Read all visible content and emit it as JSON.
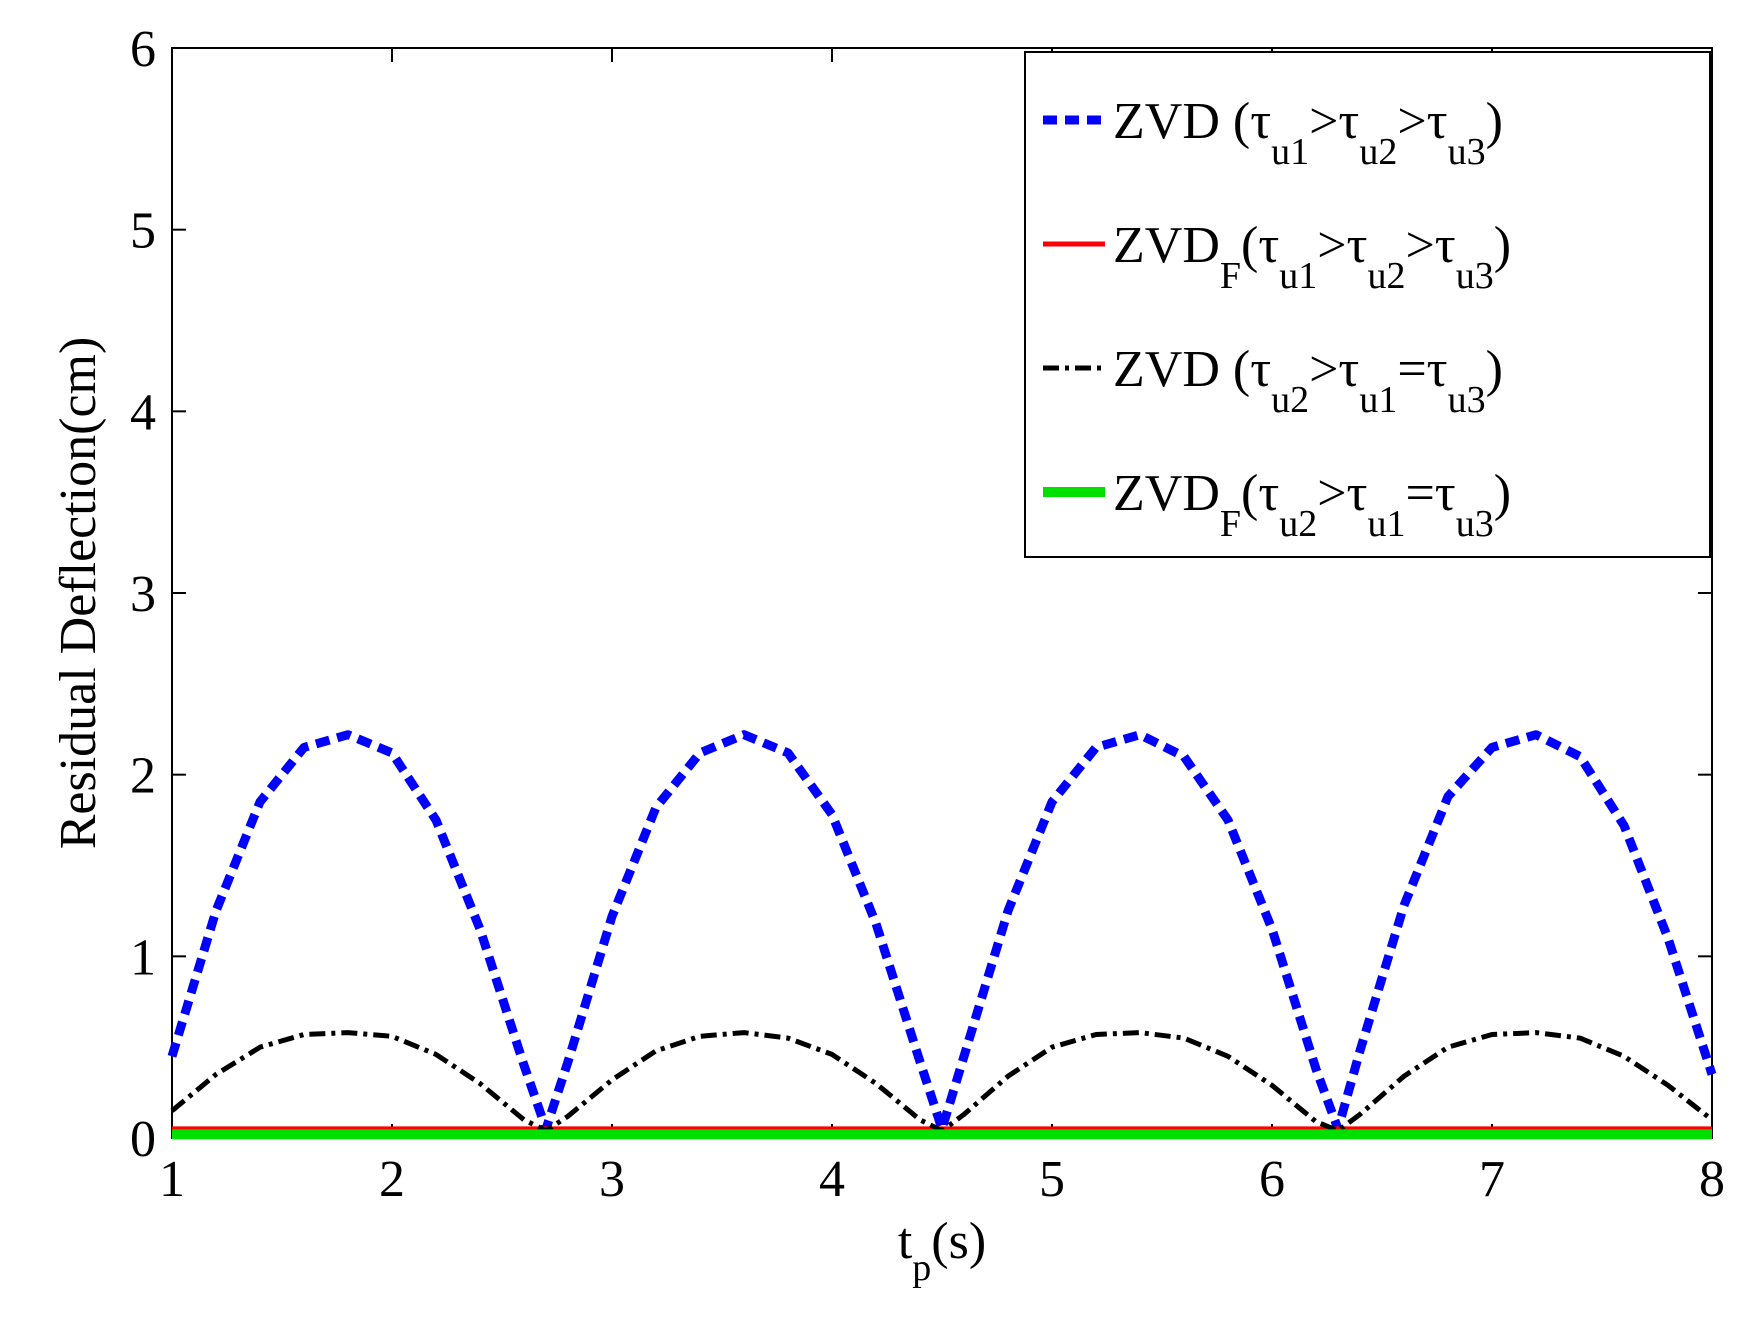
{
  "chart_data": {
    "type": "line",
    "title": "",
    "xlabel": {
      "main": "t",
      "sub": "p",
      "rest": "(s)"
    },
    "ylabel": "Residual Deflection(cm)",
    "xlim": [
      1,
      8
    ],
    "ylim": [
      0,
      6
    ],
    "xticks": [
      1,
      2,
      3,
      4,
      5,
      6,
      7,
      8
    ],
    "yticks": [
      0,
      1,
      2,
      3,
      4,
      5,
      6
    ],
    "grid": false,
    "legend_position": "top-right",
    "series": [
      {
        "color": "#0000ff",
        "style": "dashed",
        "legend": {
          "base": "ZVD",
          "baseSub": "",
          "a": "u1",
          "op1": ">",
          "b": "u2",
          "op2": ">",
          "c": "u3"
        },
        "x": [
          1.0,
          1.2,
          1.4,
          1.6,
          1.8,
          2.0,
          2.2,
          2.4,
          2.6,
          2.7,
          2.8,
          3.0,
          3.2,
          3.4,
          3.6,
          3.8,
          4.0,
          4.2,
          4.4,
          4.5,
          4.6,
          4.8,
          5.0,
          5.2,
          5.4,
          5.6,
          5.8,
          6.0,
          6.2,
          6.3,
          6.4,
          6.6,
          6.8,
          7.0,
          7.2,
          7.4,
          7.6,
          7.8,
          8.0
        ],
        "y": [
          0.45,
          1.25,
          1.85,
          2.15,
          2.22,
          2.12,
          1.75,
          1.15,
          0.4,
          0.05,
          0.42,
          1.22,
          1.82,
          2.12,
          2.22,
          2.12,
          1.78,
          1.18,
          0.42,
          0.05,
          0.45,
          1.25,
          1.85,
          2.15,
          2.22,
          2.1,
          1.75,
          1.15,
          0.38,
          0.05,
          0.48,
          1.28,
          1.88,
          2.15,
          2.22,
          2.1,
          1.72,
          1.1,
          0.35
        ]
      },
      {
        "color": "#ff0000",
        "style": "solid",
        "legend": {
          "base": "ZVD",
          "baseSub": "F",
          "a": "u1",
          "op1": ">",
          "b": "u2",
          "op2": ">",
          "c": "u3"
        },
        "x": [
          1,
          2,
          3,
          4,
          5,
          6,
          7,
          8
        ],
        "y": [
          0.05,
          0.05,
          0.05,
          0.05,
          0.05,
          0.05,
          0.05,
          0.05
        ]
      },
      {
        "color": "#000000",
        "style": "dashdot",
        "legend": {
          "base": "ZVD",
          "baseSub": "",
          "a": "u2",
          "op1": ">",
          "b": "u1",
          "op2": "=",
          "c": "u3"
        },
        "x": [
          1.0,
          1.2,
          1.4,
          1.6,
          1.8,
          2.0,
          2.2,
          2.4,
          2.6,
          2.7,
          2.8,
          3.0,
          3.2,
          3.4,
          3.6,
          3.8,
          4.0,
          4.2,
          4.4,
          4.5,
          4.6,
          4.8,
          5.0,
          5.2,
          5.4,
          5.6,
          5.8,
          6.0,
          6.2,
          6.3,
          6.4,
          6.6,
          6.8,
          7.0,
          7.2,
          7.4,
          7.6,
          7.8,
          8.0
        ],
        "y": [
          0.15,
          0.35,
          0.5,
          0.57,
          0.58,
          0.56,
          0.46,
          0.3,
          0.1,
          0.04,
          0.12,
          0.32,
          0.48,
          0.56,
          0.58,
          0.55,
          0.46,
          0.3,
          0.1,
          0.04,
          0.13,
          0.34,
          0.5,
          0.57,
          0.58,
          0.55,
          0.45,
          0.29,
          0.09,
          0.04,
          0.13,
          0.34,
          0.5,
          0.57,
          0.58,
          0.55,
          0.45,
          0.29,
          0.1
        ]
      },
      {
        "color": "#00e000",
        "style": "solid",
        "legend": {
          "base": "ZVD",
          "baseSub": "F",
          "a": "u2",
          "op1": ">",
          "b": "u1",
          "op2": "=",
          "c": "u3"
        },
        "x": [
          1,
          2,
          3,
          4,
          5,
          6,
          7,
          8
        ],
        "y": [
          0.02,
          0.02,
          0.02,
          0.02,
          0.02,
          0.02,
          0.02,
          0.02
        ]
      }
    ]
  }
}
